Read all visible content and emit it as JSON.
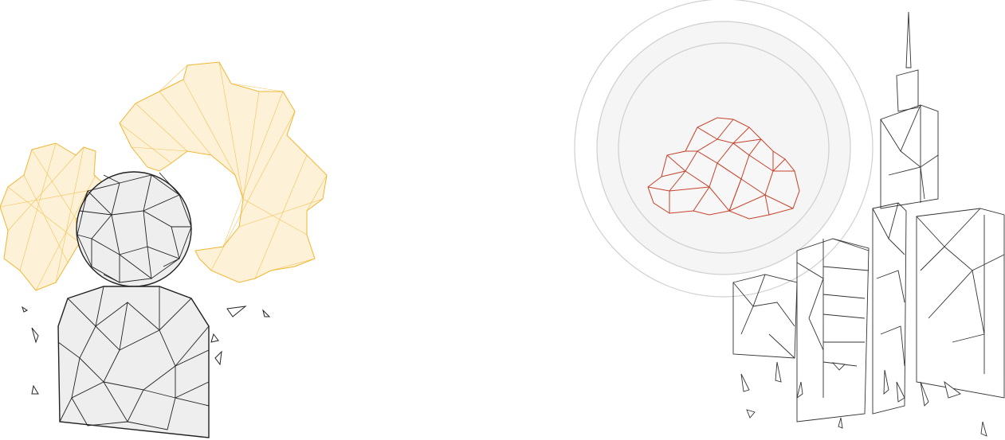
{
  "scene": {
    "left": {
      "icon": "user-with-gear-icon"
    },
    "right": {
      "icon": "cloud-city-icon"
    }
  },
  "colors": {
    "background": "#ffffff",
    "gear": "#f2b531",
    "gear_fill": "#fbe3a8",
    "user_line": "#222222",
    "user_fill": "#eeeeee",
    "cloud": "#c8402a",
    "rings": "#cfcfcf",
    "ring_fill": "#f4f5f4",
    "buildings": "#333333"
  }
}
